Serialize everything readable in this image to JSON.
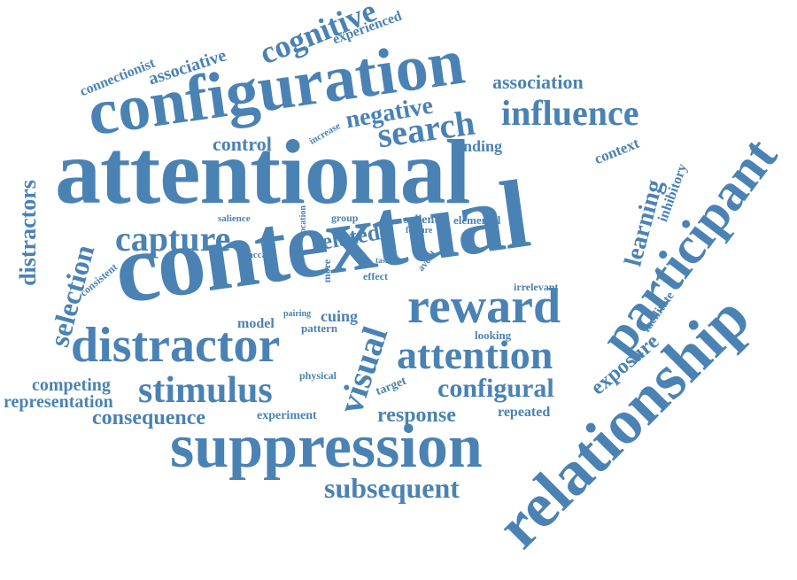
{
  "style": {
    "word_color": "#4a82b4",
    "background": "#ffffff"
  },
  "words": [
    "attentional",
    "contextual",
    "configuration",
    "suppression",
    "relationship",
    "participant",
    "reward",
    "distractor",
    "attention",
    "stimulus",
    "visual",
    "capture",
    "influence",
    "search",
    "subsequent",
    "cognitive",
    "selection",
    "distractors",
    "negative",
    "configural",
    "learning",
    "related",
    "response",
    "consequence",
    "exposure",
    "association",
    "associative",
    "representation",
    "competing",
    "control",
    "cuing",
    "context",
    "connectionist",
    "experienced",
    "increase",
    "finding",
    "inhibitory",
    "facilitate",
    "irrelevant",
    "looking",
    "repeated",
    "target",
    "experiment",
    "physical",
    "pattern",
    "model",
    "pairing",
    "effect",
    "more",
    "saccade",
    "salience",
    "location",
    "group",
    "salient",
    "feature",
    "elemental",
    "consistent",
    "avoid",
    "task"
  ]
}
